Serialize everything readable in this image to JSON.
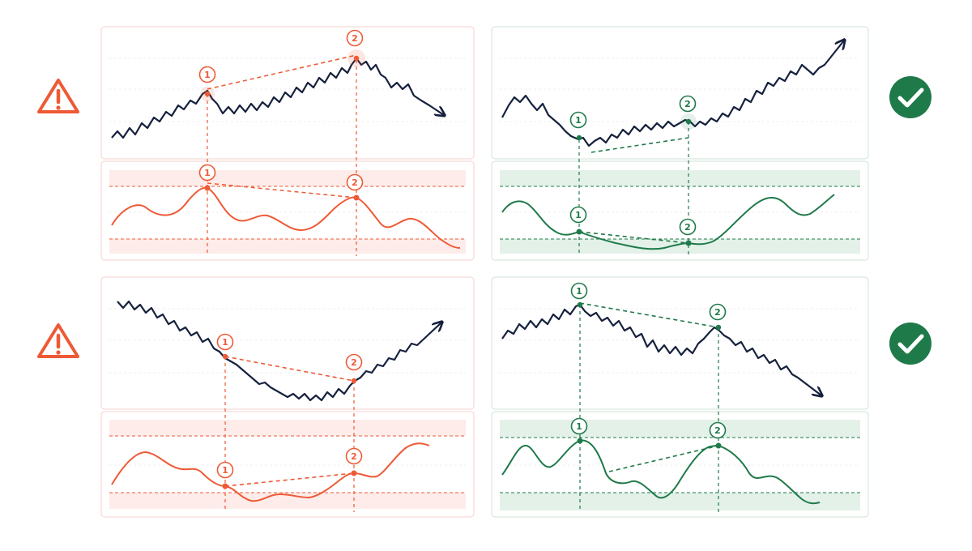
{
  "colors": {
    "bearish": "#ee5a36",
    "bullish": "#1f7a4a",
    "price": "#16213e",
    "bearish_fill": "#fdecea",
    "bullish_fill": "#e3f1e8",
    "grid": "#e8e8e8",
    "panel_border_red": "#f4d2cc",
    "panel_border_green": "#cfe3d6"
  },
  "point_labels": {
    "first": "1",
    "second": "2"
  },
  "icons": {
    "bearish": "warning-triangle-icon",
    "bullish": "check-circle-icon"
  },
  "rows": [
    {
      "left": {
        "status": "warning",
        "price_trend": "up",
        "price_exit": "down",
        "oscillator_trend": "down",
        "icon": "warning-triangle-icon"
      },
      "right": {
        "status": "correct",
        "price_trend": "up",
        "price_exit": "up",
        "oscillator_trend": "down",
        "icon": "check-circle-icon"
      }
    },
    {
      "left": {
        "status": "warning",
        "price_trend": "down",
        "price_exit": "up",
        "oscillator_trend": "up",
        "icon": "warning-triangle-icon"
      },
      "right": {
        "status": "correct",
        "price_trend": "down",
        "price_exit": "down",
        "oscillator_trend": "up",
        "icon": "check-circle-icon"
      }
    }
  ]
}
